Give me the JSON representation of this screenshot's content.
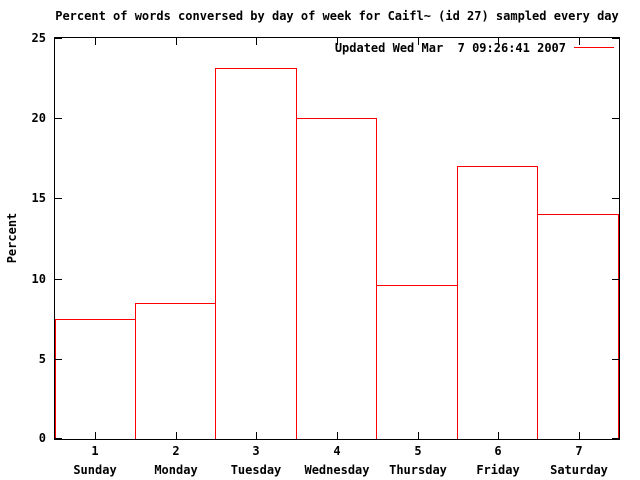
{
  "chart_data": {
    "type": "bar",
    "bar_style": "outline",
    "title": "Percent of words conversed by day of week for Caifl~ (id 27) sampled every day",
    "legend_label": "Updated Wed Mar  7 09:26:41 2007",
    "legend_position": "top-right",
    "ylabel": "Percent",
    "xlabel": "",
    "categories": [
      "Sunday",
      "Monday",
      "Tuesday",
      "Wednesday",
      "Thursday",
      "Friday",
      "Saturday"
    ],
    "x_tick_labels": [
      "1",
      "2",
      "3",
      "4",
      "5",
      "6",
      "7"
    ],
    "values": [
      7.5,
      8.5,
      23.1,
      20.0,
      9.6,
      17.0,
      14.0
    ],
    "y_ticks": [
      0,
      5,
      10,
      15,
      20,
      25
    ],
    "ylim": [
      0,
      25
    ],
    "xlim": [
      0.5,
      7.5
    ],
    "grid": false,
    "series_color": "#ff0000",
    "axis_color": "#000000",
    "background_color": "#ffffff",
    "text_color": "#000000"
  }
}
